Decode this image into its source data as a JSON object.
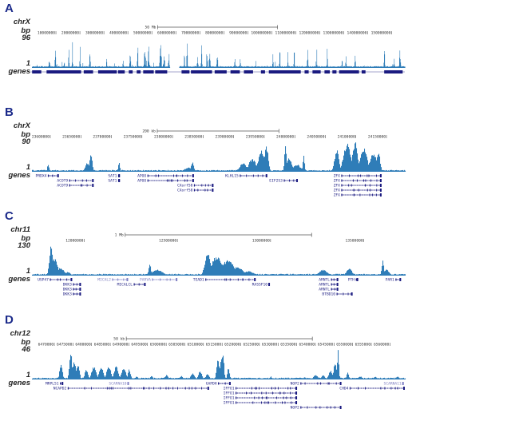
{
  "colors": {
    "coverage": "#2f7db8",
    "genes": "#1a1a80",
    "genes_light": "#8080c4",
    "panel_letter": "#1b2a8a"
  },
  "panels": [
    {
      "letter": "A",
      "chrom": "chrX",
      "bp_label": "bp",
      "max": "96",
      "min": "1",
      "track_label": "genes",
      "range": [
        0,
        155.5
      ],
      "style": "spiky",
      "scale_bar": {
        "label": "50 Mb",
        "start": 52.4,
        "end": 102.4
      },
      "ticks": [
        {
          "pos": 10,
          "label": "10000000"
        },
        {
          "pos": 20,
          "label": "20000000"
        },
        {
          "pos": 30,
          "label": "30000000"
        },
        {
          "pos": 40,
          "label": "40000000"
        },
        {
          "pos": 50,
          "label": "50000000"
        },
        {
          "pos": 60,
          "label": "60000000"
        },
        {
          "pos": 70,
          "label": "70000000"
        },
        {
          "pos": 80,
          "label": "80000000"
        },
        {
          "pos": 90,
          "label": "90000000"
        },
        {
          "pos": 100,
          "label": "100000000"
        },
        {
          "pos": 110,
          "label": "110000000"
        },
        {
          "pos": 120,
          "label": "120000000"
        },
        {
          "pos": 130,
          "label": "130000000"
        },
        {
          "pos": 140,
          "label": "140000000"
        },
        {
          "pos": 150,
          "label": "150000000"
        }
      ],
      "gaps": [
        [
          57.6,
          61.4
        ]
      ],
      "peaks": [
        [
          7.2,
          0.45,
          0.3
        ],
        [
          9.7,
          0.8,
          0.2
        ],
        [
          13.3,
          0.4,
          0.2
        ],
        [
          15.3,
          0.6,
          0.2
        ],
        [
          16.8,
          0.85,
          0.2
        ],
        [
          20,
          0.7,
          0.2
        ],
        [
          24.1,
          0.95,
          0.2
        ],
        [
          31,
          0.3,
          0.2
        ],
        [
          38,
          0.4,
          0.2
        ],
        [
          40.9,
          1.0,
          0.2
        ],
        [
          44,
          0.95,
          0.2
        ],
        [
          47,
          0.8,
          0.3
        ],
        [
          48.6,
          0.7,
          0.3
        ],
        [
          53.6,
          0.75,
          0.4
        ],
        [
          55,
          0.55,
          0.3
        ],
        [
          57,
          0.6,
          0.2
        ],
        [
          63.5,
          0.45,
          0.2
        ],
        [
          64.6,
          0.8,
          0.2
        ],
        [
          69,
          0.6,
          0.2
        ],
        [
          70.7,
          1.0,
          0.2
        ],
        [
          72.9,
          0.75,
          0.2
        ],
        [
          74,
          0.5,
          0.3
        ],
        [
          77.2,
          0.85,
          0.2
        ],
        [
          84.5,
          0.45,
          0.2
        ],
        [
          86.7,
          0.45,
          0.2
        ],
        [
          100.4,
          0.45,
          0.2
        ],
        [
          103.3,
          0.6,
          0.2
        ],
        [
          106.6,
          0.55,
          0.2
        ],
        [
          109.3,
          0.6,
          0.2
        ],
        [
          114.9,
          0.6,
          0.2
        ],
        [
          118.7,
          0.6,
          0.2
        ],
        [
          123.1,
          0.7,
          0.2
        ],
        [
          129.2,
          0.4,
          0.2
        ],
        [
          130.9,
          0.5,
          0.2
        ],
        [
          134.7,
          0.4,
          0.2
        ],
        [
          146.9,
          0.6,
          0.2
        ],
        [
          151,
          0.3,
          0.3
        ],
        [
          153.4,
          0.6,
          0.3
        ]
      ],
      "gene_blocks": [
        [
          0.07,
          3.9
        ],
        [
          6.1,
          20.5
        ],
        [
          21.6,
          25.5
        ],
        [
          27.6,
          35.4
        ],
        [
          35.9,
          38.7
        ],
        [
          40.4,
          42
        ],
        [
          43.7,
          45.3
        ],
        [
          46.4,
          50.8
        ],
        [
          51.4,
          56.4
        ],
        [
          62.4,
          65.7
        ],
        [
          66.3,
          75.1
        ],
        [
          76.2,
          81.2
        ],
        [
          82.8,
          86.7
        ],
        [
          88.4,
          92.2
        ],
        [
          95.5,
          97.2
        ],
        [
          98.8,
          112.1
        ],
        [
          113.7,
          115.4
        ],
        [
          117,
          120.4
        ],
        [
          122,
          124.2
        ],
        [
          125.3,
          127
        ],
        [
          128.1,
          136.4
        ],
        [
          137.5,
          139.1
        ],
        [
          146.9,
          154.6
        ]
      ],
      "genes": []
    },
    {
      "letter": "B",
      "chrom": "chrX",
      "bp_label": "bp",
      "max": "90",
      "min": "1",
      "track_label": "genes",
      "range": [
        23570,
        24180
      ],
      "style": "broad",
      "scale_bar": {
        "label": "200 kb",
        "start": 23775,
        "end": 23974
      },
      "ticks": [
        {
          "pos": 23600,
          "label": "23600000"
        },
        {
          "pos": 23650,
          "label": "23650000"
        },
        {
          "pos": 23700,
          "label": "23700000"
        },
        {
          "pos": 23750,
          "label": "23750000"
        },
        {
          "pos": 23800,
          "label": "23800000"
        },
        {
          "pos": 23850,
          "label": "23850000"
        },
        {
          "pos": 23900,
          "label": "23900000"
        },
        {
          "pos": 23950,
          "label": "23950000"
        },
        {
          "pos": 24000,
          "label": "24000000"
        },
        {
          "pos": 24050,
          "label": "24050000"
        },
        {
          "pos": 24100,
          "label": "24100000"
        },
        {
          "pos": 24150,
          "label": "24150000"
        }
      ],
      "gaps": [],
      "peaks": [
        [
          23596,
          0.25,
          2
        ],
        [
          23660,
          0.3,
          5
        ],
        [
          23666,
          0.6,
          3
        ],
        [
          23712,
          0.3,
          2
        ],
        [
          23825,
          0.15,
          8
        ],
        [
          23832,
          0.35,
          3
        ],
        [
          23915,
          0.3,
          8
        ],
        [
          23930,
          0.45,
          8
        ],
        [
          23945,
          0.7,
          7
        ],
        [
          23953,
          0.9,
          4
        ],
        [
          23984,
          0.95,
          2
        ],
        [
          23990,
          0.45,
          6
        ],
        [
          24003,
          0.25,
          8
        ],
        [
          24014,
          0.55,
          2
        ],
        [
          24068,
          0.75,
          5
        ],
        [
          24085,
          0.95,
          8
        ],
        [
          24098,
          1.0,
          6
        ],
        [
          24112,
          0.8,
          8
        ],
        [
          24128,
          0.65,
          8
        ],
        [
          24136,
          0.7,
          4
        ]
      ],
      "genes": [
        {
          "name": "PRDX4",
          "row": 0,
          "start": 23596,
          "end": 23614
        },
        {
          "name": "ACOT9",
          "row": 1,
          "start": 23631,
          "end": 23671
        },
        {
          "name": "ACOT9",
          "row": 2,
          "start": 23631,
          "end": 23671
        },
        {
          "name": "SAT1",
          "row": 0,
          "start": 23711,
          "end": 23714
        },
        {
          "name": "SAT1",
          "row": 1,
          "start": 23711,
          "end": 23714
        },
        {
          "name": "APOO",
          "row": 0,
          "start": 23759,
          "end": 23835
        },
        {
          "name": "APOO",
          "row": 1,
          "start": 23759,
          "end": 23835
        },
        {
          "name": "CXorf58",
          "row": 2,
          "start": 23835,
          "end": 23867
        },
        {
          "name": "CXorf58",
          "row": 3,
          "start": 23835,
          "end": 23867
        },
        {
          "name": "KLHL15",
          "row": 0,
          "start": 23910,
          "end": 23955
        },
        {
          "name": "EIF2S3",
          "row": 1,
          "start": 23982,
          "end": 24005
        },
        {
          "name": "ZFX",
          "row": 0,
          "start": 24076,
          "end": 24142
        },
        {
          "name": "ZFX",
          "row": 1,
          "start": 24076,
          "end": 24142
        },
        {
          "name": "ZFX",
          "row": 2,
          "start": 24076,
          "end": 24142
        },
        {
          "name": "ZFX",
          "row": 3,
          "start": 24076,
          "end": 24142
        },
        {
          "name": "ZFX",
          "row": 4,
          "start": 24076,
          "end": 24142
        }
      ]
    },
    {
      "letter": "C",
      "chrom": "chr11",
      "bp_label": "bp",
      "max": "130",
      "min": "1",
      "track_label": "genes",
      "range": [
        11.72,
        13.72
      ],
      "style": "broad",
      "scale_bar": {
        "label": "1 Mb",
        "start": 12.22,
        "end": 13.22
      },
      "ticks": [
        {
          "pos": 12.0,
          "label": "12000000"
        },
        {
          "pos": 12.5,
          "label": "12500000"
        },
        {
          "pos": 13.0,
          "label": "13000000"
        },
        {
          "pos": 13.5,
          "label": "13500000"
        }
      ],
      "gaps": [],
      "peaks": [
        [
          11.82,
          1.0,
          0.012
        ],
        [
          11.84,
          0.6,
          0.02
        ],
        [
          11.87,
          0.25,
          0.03
        ],
        [
          11.91,
          0.12,
          0.02
        ],
        [
          12.35,
          0.45,
          0.008
        ],
        [
          12.39,
          0.2,
          0.04
        ],
        [
          12.66,
          0.75,
          0.02
        ],
        [
          12.71,
          0.65,
          0.04
        ],
        [
          12.77,
          0.55,
          0.04
        ],
        [
          12.82,
          0.3,
          0.04
        ],
        [
          12.88,
          0.15,
          0.04
        ],
        [
          13.28,
          0.2,
          0.03
        ],
        [
          13.42,
          0.25,
          0.02
        ],
        [
          13.6,
          0.5,
          0.008
        ],
        [
          13.62,
          0.2,
          0.02
        ]
      ],
      "genes": [
        {
          "name": "USP47",
          "row": 0,
          "start": 11.816,
          "end": 11.936
        },
        {
          "name": "DKK3",
          "row": 1,
          "start": 11.94,
          "end": 11.983
        },
        {
          "name": "DKK3",
          "row": 2,
          "start": 11.94,
          "end": 11.983
        },
        {
          "name": "DKK3",
          "row": 3,
          "start": 11.94,
          "end": 11.983
        },
        {
          "name": "MICAL2",
          "row": 0,
          "start": 12.15,
          "end": 12.236,
          "light": true
        },
        {
          "name": "MICALCL",
          "row": 1,
          "start": 12.266,
          "end": 12.33
        },
        {
          "name": "PARVA",
          "row": 0,
          "start": 12.364,
          "end": 12.5,
          "light": true
        },
        {
          "name": "TEAD1",
          "row": 0,
          "start": 12.65,
          "end": 12.92
        },
        {
          "name": "RASSF10",
          "row": 1,
          "start": 12.99,
          "end": 12.995
        },
        {
          "name": "ARNTL",
          "row": 0,
          "start": 13.324,
          "end": 13.363
        },
        {
          "name": "ARNTL",
          "row": 1,
          "start": 13.324,
          "end": 13.363
        },
        {
          "name": "ARNTL",
          "row": 2,
          "start": 13.324,
          "end": 13.363
        },
        {
          "name": "BTBD10",
          "row": 3,
          "start": 13.354,
          "end": 13.44
        },
        {
          "name": "PTH",
          "row": 0,
          "start": 13.457,
          "end": 13.47
        },
        {
          "name": "PAR1",
          "row": 0,
          "start": 13.67,
          "end": 13.7
        }
      ]
    },
    {
      "letter": "D",
      "chrom": "chr12",
      "bp_label": "bp",
      "max": "46",
      "min": "1",
      "track_label": "genes",
      "range": [
        6464,
        6564
      ],
      "style": "broad",
      "scale_bar": {
        "label": "50 kb",
        "start": 6489.3,
        "end": 6539.2
      },
      "ticks": [
        {
          "pos": 6470,
          "label": "6470000"
        },
        {
          "pos": 6475,
          "label": "6475000"
        },
        {
          "pos": 6480,
          "label": "6480000"
        },
        {
          "pos": 6485,
          "label": "6485000"
        },
        {
          "pos": 6490,
          "label": "6490000"
        },
        {
          "pos": 6495,
          "label": "6495000"
        },
        {
          "pos": 6500,
          "label": "6500000"
        },
        {
          "pos": 6505,
          "label": "6505000"
        },
        {
          "pos": 6510,
          "label": "6510000"
        },
        {
          "pos": 6515,
          "label": "6515000"
        },
        {
          "pos": 6520,
          "label": "6520000"
        },
        {
          "pos": 6525,
          "label": "6525000"
        },
        {
          "pos": 6530,
          "label": "6530000"
        },
        {
          "pos": 6535,
          "label": "6535000"
        },
        {
          "pos": 6540,
          "label": "6540000"
        },
        {
          "pos": 6545,
          "label": "6545000"
        },
        {
          "pos": 6550,
          "label": "6550000"
        },
        {
          "pos": 6555,
          "label": "6555000"
        },
        {
          "pos": 6560,
          "label": "6560000"
        }
      ],
      "gaps": [],
      "peaks": [
        [
          6471.7,
          0.55,
          0.5
        ],
        [
          6474.3,
          0.9,
          0.5
        ],
        [
          6475.2,
          0.6,
          0.8
        ],
        [
          6476.3,
          0.55,
          0.5
        ],
        [
          6478.5,
          0.35,
          0.6
        ],
        [
          6480.5,
          0.45,
          0.8
        ],
        [
          6482.5,
          0.4,
          0.8
        ],
        [
          6484.5,
          0.45,
          0.8
        ],
        [
          6486.5,
          0.5,
          0.7
        ],
        [
          6488.5,
          0.4,
          0.8
        ],
        [
          6490,
          0.35,
          0.5
        ],
        [
          6492,
          0.1,
          0.5
        ],
        [
          6496,
          0.12,
          0.5
        ],
        [
          6500,
          0.15,
          0.6
        ],
        [
          6504,
          0.12,
          0.6
        ],
        [
          6507,
          0.2,
          0.7
        ],
        [
          6509,
          0.3,
          0.6
        ],
        [
          6511,
          0.2,
          0.6
        ],
        [
          6513.8,
          0.75,
          0.5
        ],
        [
          6514.8,
          0.85,
          0.6
        ],
        [
          6515.2,
          1.0,
          0.3
        ],
        [
          6516.6,
          0.4,
          0.4
        ],
        [
          6521,
          0.07,
          0.3
        ],
        [
          6528,
          0.1,
          0.3
        ],
        [
          6537,
          0.08,
          0.5
        ],
        [
          6540,
          0.15,
          0.8
        ],
        [
          6542,
          0.15,
          0.6
        ],
        [
          6544,
          0.3,
          0.7
        ],
        [
          6545.2,
          0.6,
          0.5
        ],
        [
          6546,
          1.0,
          0.3
        ],
        [
          6548.6,
          0.25,
          0.4
        ],
        [
          6552,
          0.1,
          0.8
        ],
        [
          6556,
          0.1,
          0.6
        ],
        [
          6562,
          0.1,
          0.6
        ]
      ],
      "genes": [
        {
          "name": "MRPL51",
          "row": 0,
          "start": 6471.5,
          "end": 6472.4
        },
        {
          "name": "NCAPD2",
          "row": 1,
          "start": 6473.6,
          "end": 6511.5
        },
        {
          "name": "SCARNA10",
          "row": 0,
          "start": 6489.7,
          "end": 6489.9,
          "light": true
        },
        {
          "name": "GAPDH",
          "row": 0,
          "start": 6513.9,
          "end": 6517.3
        },
        {
          "name": "IFFO1",
          "row": 1,
          "start": 6518.6,
          "end": 6535.1
        },
        {
          "name": "IFFO1",
          "row": 2,
          "start": 6518.6,
          "end": 6535.1
        },
        {
          "name": "IFFO1",
          "row": 3,
          "start": 6518.6,
          "end": 6535.1
        },
        {
          "name": "IFFO1",
          "row": 4,
          "start": 6518.6,
          "end": 6535.1
        },
        {
          "name": "NOP2",
          "row": 0,
          "start": 6536,
          "end": 6547
        },
        {
          "name": "NOP2",
          "row": 5,
          "start": 6536,
          "end": 6547
        },
        {
          "name": "SCARNA11",
          "row": 0,
          "start": 6563.4,
          "end": 6563.6,
          "light": true
        },
        {
          "name": "CHD4",
          "row": 1,
          "start": 6549.2,
          "end": 6564
        }
      ]
    }
  ]
}
